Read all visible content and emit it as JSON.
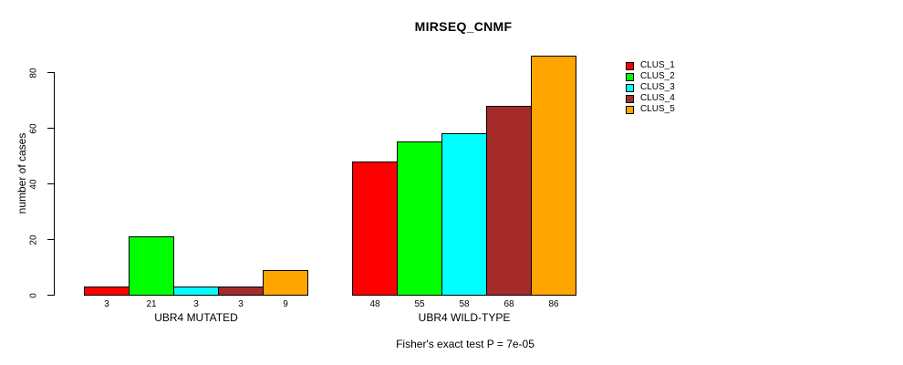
{
  "chart_data": {
    "type": "bar",
    "title": "MIRSEQ_CNMF",
    "ylabel": "number of cases",
    "xlabel": "",
    "yticks": [
      0,
      20,
      40,
      60,
      80
    ],
    "ylim": [
      0,
      86
    ],
    "grid": false,
    "legend_position": "top-right",
    "series_names": [
      "CLUS_1",
      "CLUS_2",
      "CLUS_3",
      "CLUS_4",
      "CLUS_5"
    ],
    "colors": [
      "#FF0000",
      "#00FF00",
      "#00FFFF",
      "#A52A2A",
      "#FFA500"
    ],
    "groups": [
      {
        "label": "UBR4 MUTATED",
        "values": [
          3,
          21,
          3,
          3,
          9
        ]
      },
      {
        "label": "UBR4 WILD-TYPE",
        "values": [
          48,
          55,
          58,
          68,
          86
        ]
      }
    ],
    "bar_value_labels_shown": true,
    "annotation": "Fisher's exact test P = 7e-05"
  }
}
